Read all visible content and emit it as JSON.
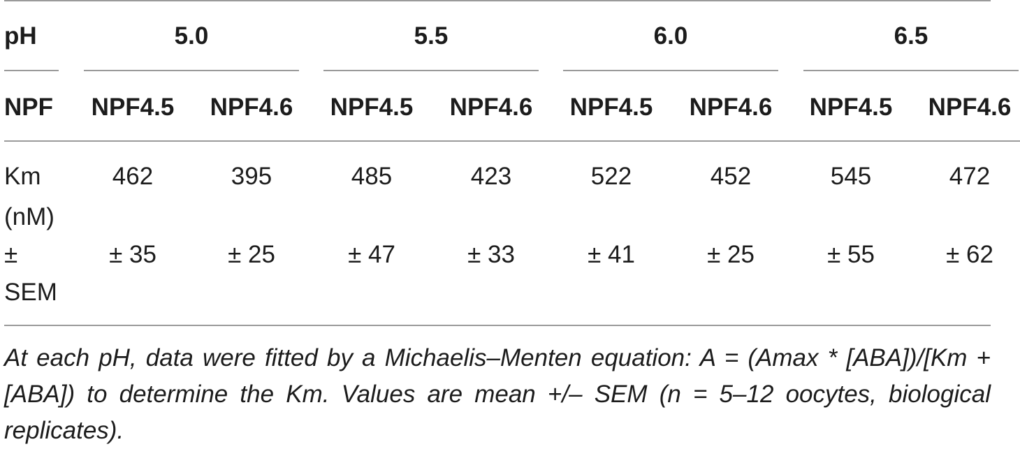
{
  "table": {
    "header_ph_label": "pH",
    "header_npf_label": "NPF",
    "ph_groups": [
      "5.0",
      "5.5",
      "6.0",
      "6.5"
    ],
    "subheaders": [
      "NPF4.5",
      "NPF4.6",
      "NPF4.5",
      "NPF4.6",
      "NPF4.5",
      "NPF4.6",
      "NPF4.5",
      "NPF4.6"
    ],
    "rows": [
      {
        "label_line1": "Km",
        "label_line2": "(nM)",
        "values": [
          "462",
          "395",
          "485",
          "423",
          "522",
          "452",
          "545",
          "472"
        ]
      },
      {
        "label_line1": "±",
        "label_line2": "SEM",
        "values": [
          "± 35",
          "± 25",
          "± 47",
          "± 33",
          "± 41",
          "± 25",
          "± 55",
          "± 62"
        ]
      }
    ]
  },
  "footnote": "At each pH, data were fitted by a Michaelis–Menten equation: A = (Amax * [ABA])/[Km + [ABA]) to determine the Km. Values are mean +/– SEM (n = 5–12 oocytes, biological replicates)."
}
